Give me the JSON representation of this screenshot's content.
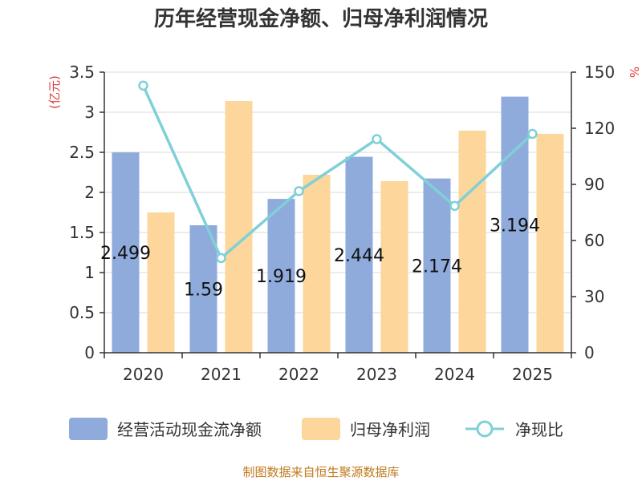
{
  "chart_data": {
    "type": "bar",
    "title": "历年经营现金净额、归母净利润情况",
    "categories": [
      "2020",
      "2021",
      "2022",
      "2023",
      "2024",
      "2025"
    ],
    "series": [
      {
        "name": "经营活动现金流净额",
        "axis": "left",
        "values": [
          2.499,
          1.59,
          1.919,
          2.444,
          2.174,
          3.194
        ],
        "labels": [
          "2.499",
          "1.59",
          "1.919",
          "2.444",
          "2.174",
          "3.194"
        ],
        "color": "#8eabdb"
      },
      {
        "name": "归母净利润",
        "axis": "left",
        "values": [
          1.75,
          3.14,
          2.22,
          2.14,
          2.77,
          2.73
        ],
        "color": "#fcd69a"
      },
      {
        "name": "净现比",
        "axis": "right",
        "type": "line",
        "values": [
          142.8,
          50.6,
          86.4,
          114.2,
          78.5,
          117.0
        ],
        "color": "#7fd0d8"
      }
    ],
    "ylabel_left": "(亿元)",
    "ylabel_right": "%",
    "ylim_left": [
      0,
      3.5
    ],
    "yticks_left": [
      "0",
      "0.5",
      "1",
      "1.5",
      "2",
      "2.5",
      "3",
      "3.5"
    ],
    "ylim_right": [
      0,
      150
    ],
    "yticks_right": [
      "0",
      "30",
      "60",
      "90",
      "120",
      "150"
    ],
    "grid": true,
    "legend_position": "bottom"
  },
  "source_text": "制图数据来自恒生聚源数据库"
}
